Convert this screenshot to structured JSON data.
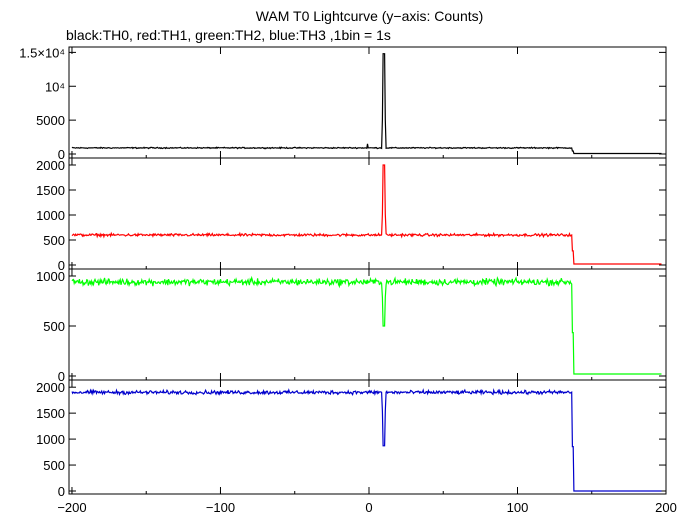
{
  "title": "WAM T0 Lightcurve (y−axis: Counts)",
  "subtitle": "black:TH0, red:TH1, green:TH2, blue:TH3 ,1bin = 1s",
  "chart_data": {
    "type": "line",
    "xlim": [
      -202,
      200
    ],
    "x_ticks": [
      -200,
      -100,
      0,
      100,
      200
    ],
    "x_tick_labels": [
      "−200",
      "−100",
      "0",
      "100",
      "200"
    ],
    "panels": [
      {
        "series_name": "TH0",
        "color": "#000000",
        "ylim": [
          0,
          15500
        ],
        "y_ticks": [
          0,
          5000,
          10000,
          15000
        ],
        "y_tick_labels": [
          "0",
          "5000",
          "10⁴",
          "1.5×10⁴"
        ],
        "baseline": 900,
        "noise": 70,
        "spike": {
          "x_start": 9,
          "x_end": 11,
          "peak": 14800
        },
        "drop": {
          "x": 137,
          "level": 80
        },
        "extra_points": [
          [
            -2,
            900
          ],
          [
            -1,
            1500
          ],
          [
            0,
            900
          ]
        ]
      },
      {
        "series_name": "TH1",
        "color": "#ff0000",
        "ylim": [
          0,
          2100
        ],
        "y_ticks": [
          0,
          500,
          1000,
          1500,
          2000
        ],
        "y_tick_labels": [
          "0",
          "500",
          "1000",
          "1500",
          "2000"
        ],
        "baseline": 600,
        "noise": 22,
        "spike": {
          "x_start": 9,
          "x_end": 11,
          "peak": 2000
        },
        "drop": {
          "x": 137,
          "level": 20
        }
      },
      {
        "series_name": "TH2",
        "color": "#00ff00",
        "ylim": [
          0,
          1050
        ],
        "y_ticks": [
          0,
          500,
          1000
        ],
        "y_tick_labels": [
          "0",
          "500",
          "1000"
        ],
        "baseline": 940,
        "noise": 28,
        "dip": {
          "x_start": 9,
          "x_end": 11,
          "min": 500
        },
        "drop": {
          "x": 137,
          "level": 20
        }
      },
      {
        "series_name": "TH3",
        "color": "#0000cc",
        "ylim": [
          0,
          2100
        ],
        "y_ticks": [
          0,
          500,
          1000,
          1500,
          2000
        ],
        "y_tick_labels": [
          "0",
          "500",
          "1000",
          "1500",
          "2000"
        ],
        "baseline": 1900,
        "noise": 30,
        "dip": {
          "x_start": 9,
          "x_end": 11,
          "min": 870
        },
        "drop": {
          "x": 137,
          "level": 0
        }
      }
    ]
  }
}
